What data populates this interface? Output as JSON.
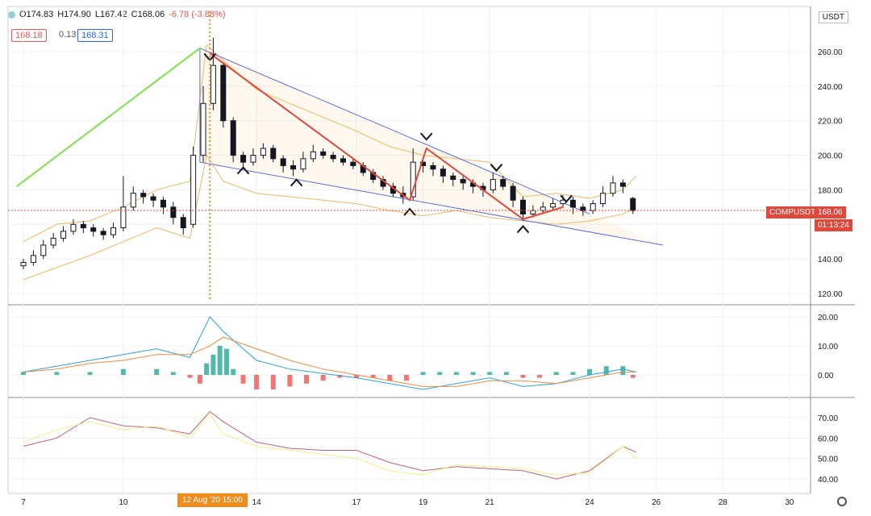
{
  "header": {
    "open_label": "O",
    "open": "174.83",
    "high_label": "H",
    "high": "174.90",
    "low_label": "L",
    "low": "167.42",
    "close_label": "C",
    "close": "168.06",
    "change": "-6.78 (-3.88%)",
    "tag_left": "168.18",
    "tag_mid": "0.13",
    "tag_right": "168.31",
    "currency": "USDT"
  },
  "price_axis": [
    "260.00",
    "240.00",
    "220.00",
    "200.00",
    "180.00",
    "160.00",
    "140.00",
    "120.00"
  ],
  "macd_axis": [
    "20.00",
    "10.00",
    "0.00"
  ],
  "rsi_axis": [
    "70.00",
    "60.00",
    "50.00",
    "40.00"
  ],
  "x_axis": {
    "labels": [
      {
        "d": 7,
        "text": "7"
      },
      {
        "d": 10,
        "text": "10"
      },
      {
        "d": 14,
        "text": "14"
      },
      {
        "d": 17,
        "text": "17"
      },
      {
        "d": 19,
        "text": "19"
      },
      {
        "d": 21,
        "text": "21"
      },
      {
        "d": 24,
        "text": "24"
      },
      {
        "d": 26,
        "text": "26"
      },
      {
        "d": 28,
        "text": "28"
      },
      {
        "d": 30,
        "text": "30"
      }
    ],
    "crosshair_label": "12 Aug '20   15:00"
  },
  "symbol_tag": "COMPUSDT",
  "last_price": "168.06",
  "countdown": "01:13:24",
  "colors": {
    "up": "#26a69a",
    "down": "#ef5350",
    "channel": "#5b6ee1",
    "zigzag": "#e0483c",
    "trend": "#7ee04a",
    "band": "#f0b860",
    "macd": "#2aa3e0",
    "signal": "#f08c3c",
    "rsi1": "#c2607a",
    "rsi2": "#f3ee88"
  },
  "chart_data": {
    "type": "candlestick",
    "series": [
      {
        "name": "candles",
        "x": [
          7,
          7.3,
          7.6,
          7.9,
          8.2,
          8.5,
          8.8,
          9.1,
          9.4,
          9.7,
          10,
          10.3,
          10.6,
          10.9,
          11.2,
          11.5,
          11.8,
          12.1,
          12.4,
          12.7,
          13,
          13.3,
          13.6,
          13.9,
          14.2,
          14.5,
          14.8,
          15.1,
          15.4,
          15.7,
          16,
          16.3,
          16.6,
          16.9,
          17.2,
          17.5,
          17.8,
          18.1,
          18.4,
          18.7,
          19,
          19.3,
          19.6,
          19.9,
          20.2,
          20.5,
          20.8,
          21.1,
          21.4,
          21.7,
          22,
          22.3,
          22.6,
          22.9,
          23.2,
          23.5,
          23.8,
          24.1,
          24.4,
          24.7,
          25,
          25.3
        ],
        "close": [
          138,
          142,
          148,
          152,
          156,
          160,
          158,
          156,
          154,
          158,
          170,
          178,
          176,
          174,
          170,
          164,
          158,
          200,
          230,
          252,
          220,
          200,
          196,
          200,
          204,
          198,
          194,
          192,
          198,
          202,
          200,
          198,
          196,
          194,
          190,
          186,
          182,
          178,
          176,
          196,
          194,
          192,
          188,
          186,
          184,
          182,
          180,
          186,
          182,
          174,
          166,
          168,
          170,
          172,
          174,
          170,
          168,
          172,
          178,
          184,
          182,
          168
        ],
        "open": [
          136,
          138,
          142,
          148,
          152,
          156,
          160,
          158,
          156,
          154,
          158,
          170,
          178,
          176,
          174,
          170,
          164,
          160,
          200,
          230,
          252,
          220,
          200,
          196,
          200,
          204,
          198,
          194,
          192,
          198,
          202,
          200,
          198,
          196,
          194,
          190,
          186,
          182,
          178,
          176,
          196,
          194,
          192,
          188,
          186,
          184,
          182,
          180,
          186,
          182,
          174,
          166,
          168,
          170,
          172,
          174,
          170,
          168,
          172,
          178,
          184,
          175
        ],
        "high": [
          140,
          145,
          151,
          155,
          159,
          163,
          162,
          160,
          158,
          161,
          188,
          182,
          180,
          178,
          176,
          173,
          166,
          205,
          240,
          268,
          254,
          222,
          202,
          204,
          207,
          206,
          200,
          197,
          202,
          206,
          204,
          202,
          200,
          198,
          196,
          192,
          188,
          184,
          182,
          204,
          199,
          196,
          194,
          190,
          188,
          186,
          184,
          190,
          188,
          184,
          176,
          171,
          173,
          175,
          177,
          176,
          172,
          174,
          182,
          188,
          186,
          176
        ],
        "low": [
          134,
          136,
          140,
          146,
          150,
          154,
          155,
          153,
          151,
          152,
          156,
          168,
          172,
          170,
          166,
          160,
          154,
          158,
          196,
          226,
          216,
          196,
          192,
          194,
          198,
          196,
          190,
          188,
          190,
          196,
          198,
          196,
          194,
          192,
          188,
          184,
          180,
          176,
          172,
          174,
          190,
          188,
          184,
          182,
          180,
          178,
          176,
          178,
          180,
          170,
          162,
          164,
          166,
          168,
          170,
          166,
          165,
          166,
          170,
          176,
          178,
          166
        ]
      }
    ],
    "zigzag": {
      "x": [
        12.6,
        18.6,
        19.1,
        22.0,
        23.2
      ],
      "y": [
        259,
        174,
        204,
        163,
        170
      ]
    },
    "channel": {
      "upper": {
        "x": [
          12.3,
          24.0
        ],
        "y": [
          262,
          166
        ]
      },
      "lower": {
        "x": [
          12.3,
          26.2
        ],
        "y": [
          196,
          148
        ]
      }
    },
    "trendline": {
      "x": [
        6.8,
        12.3
      ],
      "y": [
        182,
        262
      ]
    },
    "macd": {
      "x": [
        7,
        8,
        9,
        10,
        11,
        12,
        12.6,
        13,
        14,
        15,
        16,
        17,
        18,
        19,
        20,
        21,
        22,
        23,
        24,
        25,
        25.4
      ],
      "macd": [
        1,
        3,
        5,
        7,
        9,
        6,
        20,
        15,
        5,
        2,
        0.5,
        -1,
        -3,
        -5,
        -3,
        -1,
        -4,
        -3,
        0,
        2,
        1
      ],
      "signal": [
        1,
        2,
        4,
        5,
        7,
        7,
        10,
        13,
        9,
        5,
        2,
        0,
        -2,
        -4,
        -4,
        -2,
        -2,
        -3,
        -1,
        1,
        1
      ]
    },
    "rsi": {
      "x": [
        7,
        8,
        9,
        10,
        11,
        12,
        12.6,
        13,
        14,
        15,
        16,
        17,
        18,
        19,
        20,
        21,
        22,
        23,
        24,
        25,
        25.4
      ],
      "rsi": [
        56,
        60,
        70,
        66,
        65,
        62,
        73,
        68,
        58,
        55,
        54,
        54,
        48,
        44,
        46,
        45,
        44,
        40,
        44,
        56,
        53
      ],
      "rsi_ma": [
        58,
        64,
        68,
        64,
        66,
        60,
        72,
        62,
        56,
        54,
        52,
        50,
        44,
        42,
        47,
        46,
        45,
        42,
        43,
        56,
        50
      ]
    },
    "ylim": [
      110,
      270
    ]
  }
}
